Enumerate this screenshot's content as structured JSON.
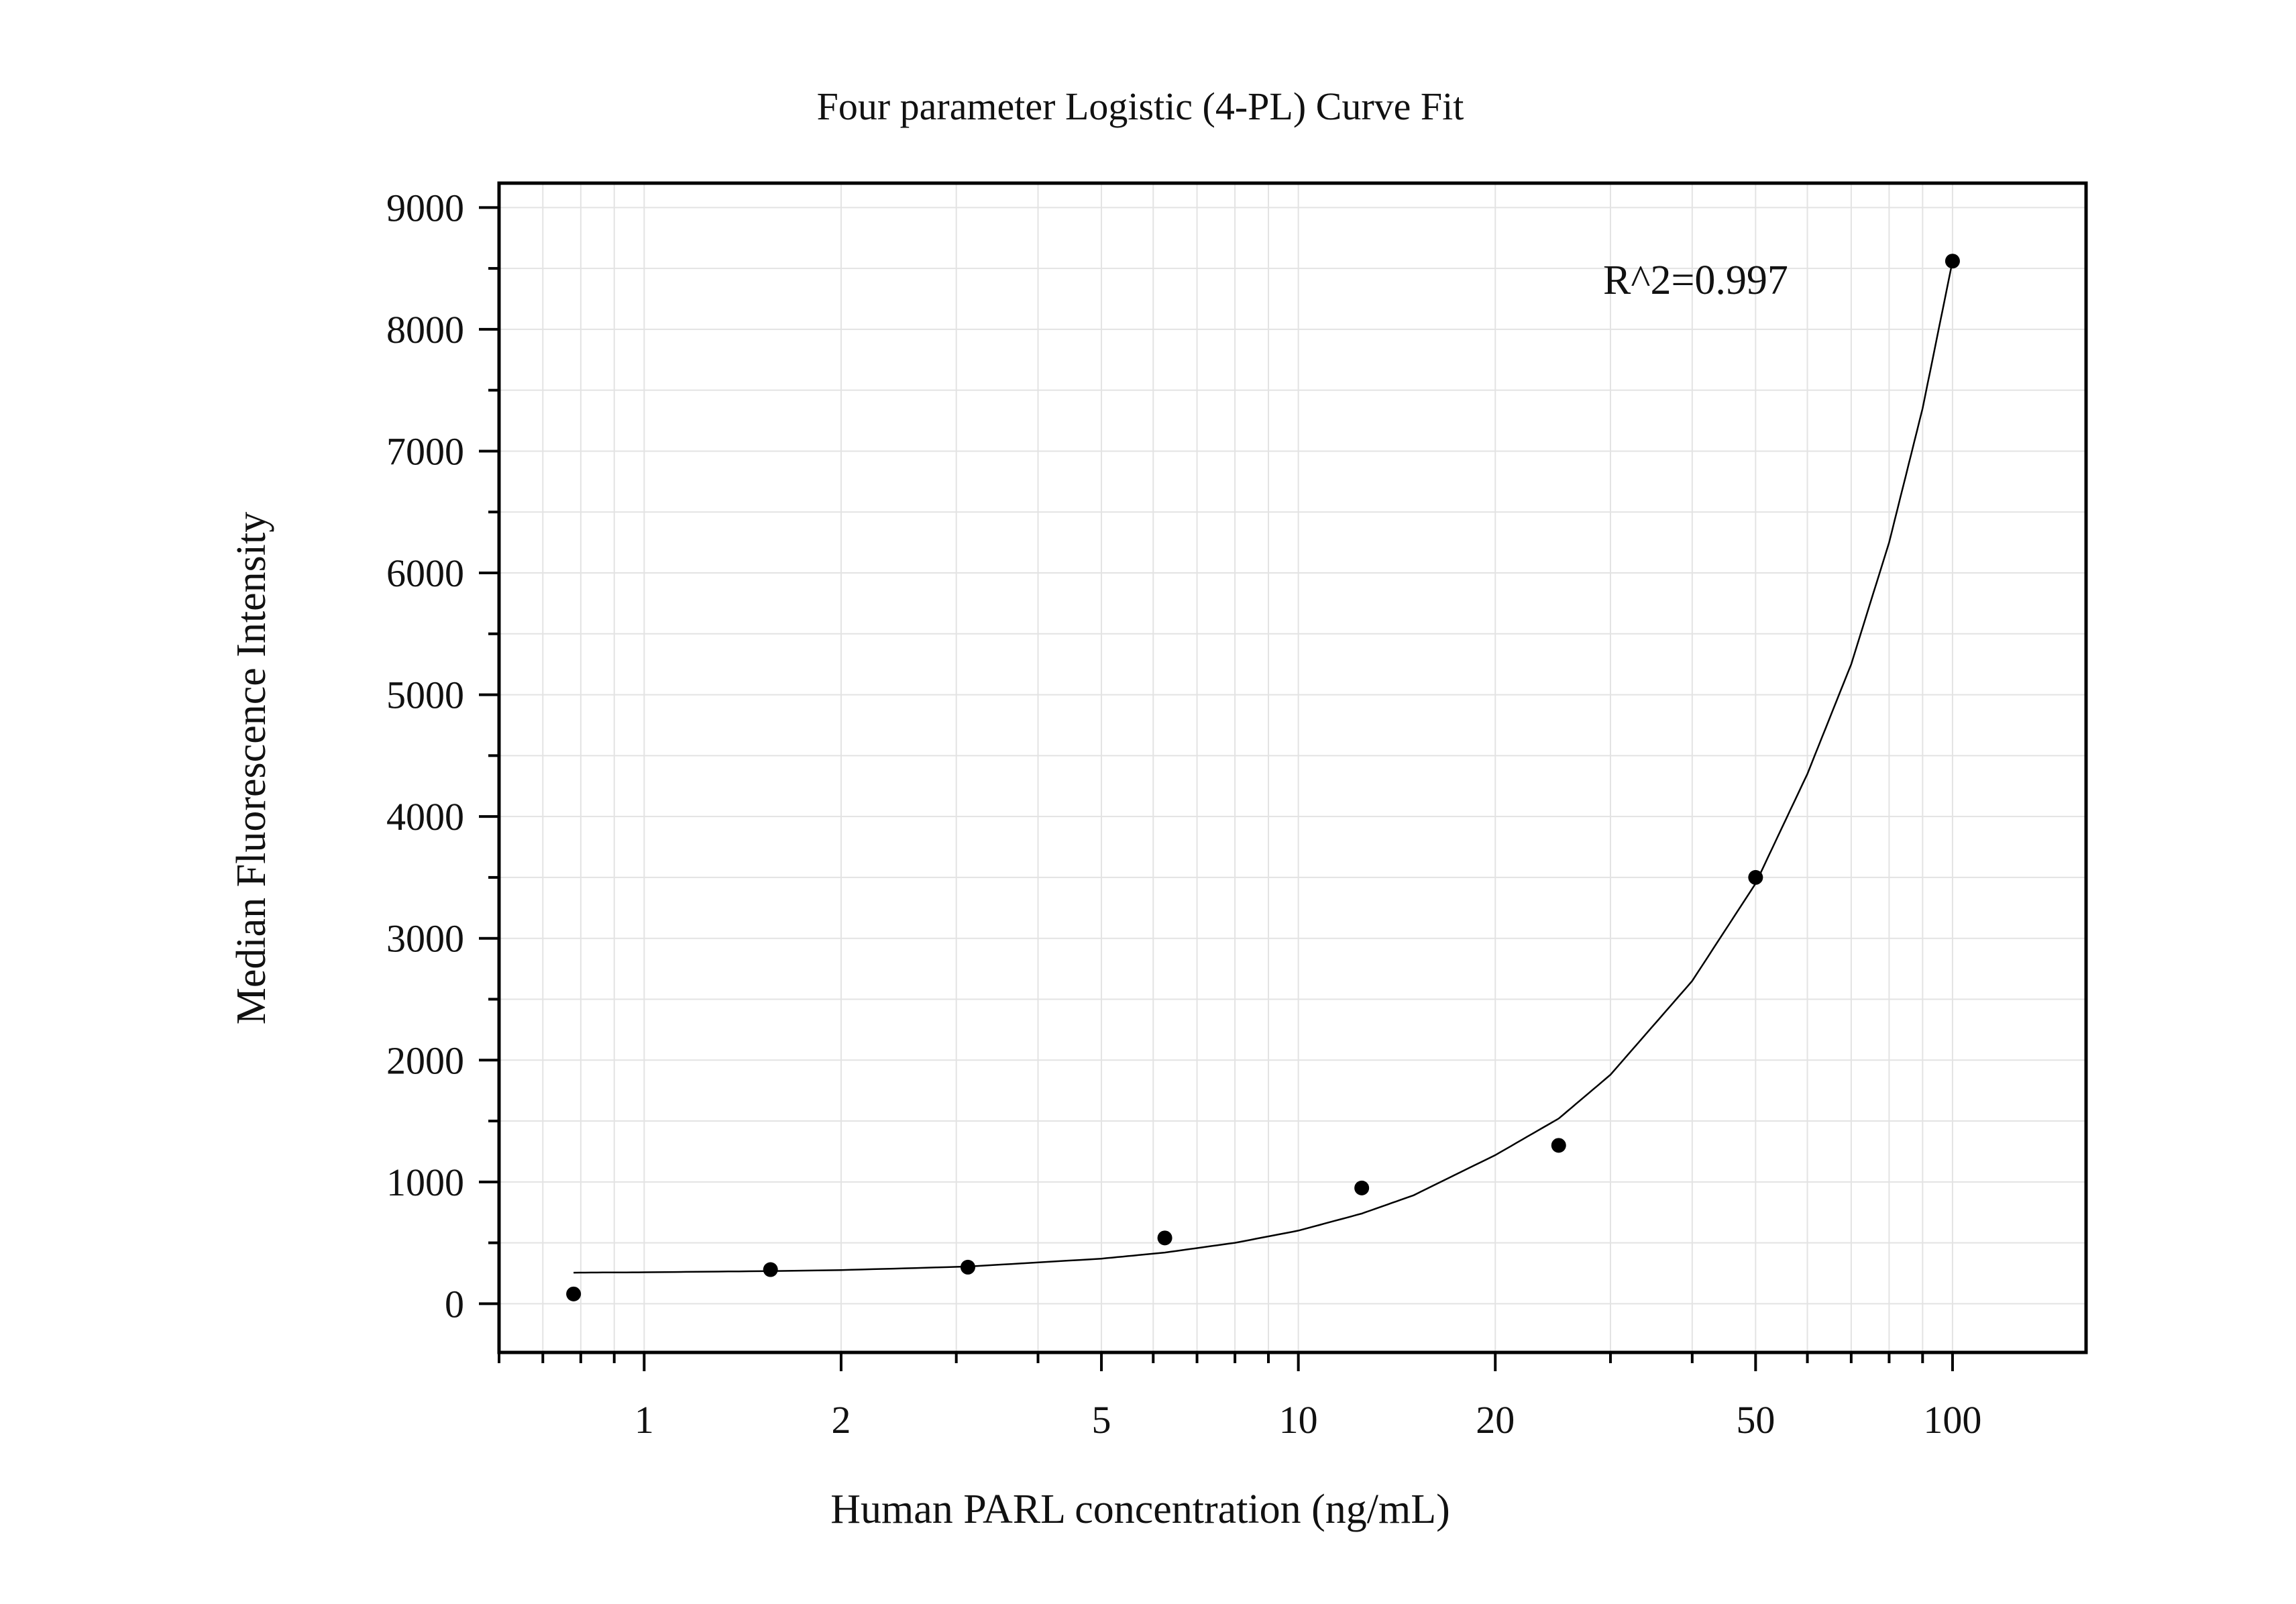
{
  "chart_data": {
    "type": "scatter",
    "title": "Four parameter Logistic (4-PL) Curve Fit",
    "xlabel": "Human PARL concentration (ng/mL)",
    "ylabel": "Median Fluorescence Intensity",
    "x_scale": "log",
    "xlim": [
      0.6,
      160
    ],
    "ylim": [
      -400,
      9200
    ],
    "x_ticks": [
      1,
      2,
      5,
      10,
      20,
      50,
      100
    ],
    "x_tick_labels": [
      "1",
      "2",
      "5",
      "10",
      "20",
      "50",
      "100"
    ],
    "y_ticks": [
      0,
      1000,
      2000,
      3000,
      4000,
      5000,
      6000,
      7000,
      8000,
      9000
    ],
    "y_tick_labels": [
      "0",
      "1000",
      "2000",
      "3000",
      "4000",
      "5000",
      "6000",
      "7000",
      "8000",
      "9000"
    ],
    "grid": true,
    "annotation": "R^2=0.997",
    "series": [
      {
        "kind": "points",
        "x": [
          0.78,
          1.56,
          3.125,
          6.25,
          12.5,
          25,
          50,
          100
        ],
        "y": [
          80,
          280,
          300,
          540,
          950,
          1300,
          3500,
          8560
        ]
      },
      {
        "kind": "fit-curve",
        "x": [
          0.78,
          1,
          1.56,
          2,
          3.125,
          5,
          6.25,
          8,
          10,
          12.5,
          15,
          20,
          25,
          30,
          40,
          50,
          60,
          70,
          80,
          90,
          100
        ],
        "y": [
          255,
          258,
          268,
          276,
          305,
          370,
          420,
          500,
          600,
          740,
          890,
          1220,
          1520,
          1880,
          2650,
          3450,
          4350,
          5250,
          6250,
          7350,
          8560
        ]
      }
    ],
    "colors": {
      "points": "#000000",
      "curve": "#000000",
      "grid": "#e3e3e3",
      "frame": "#000000"
    }
  }
}
